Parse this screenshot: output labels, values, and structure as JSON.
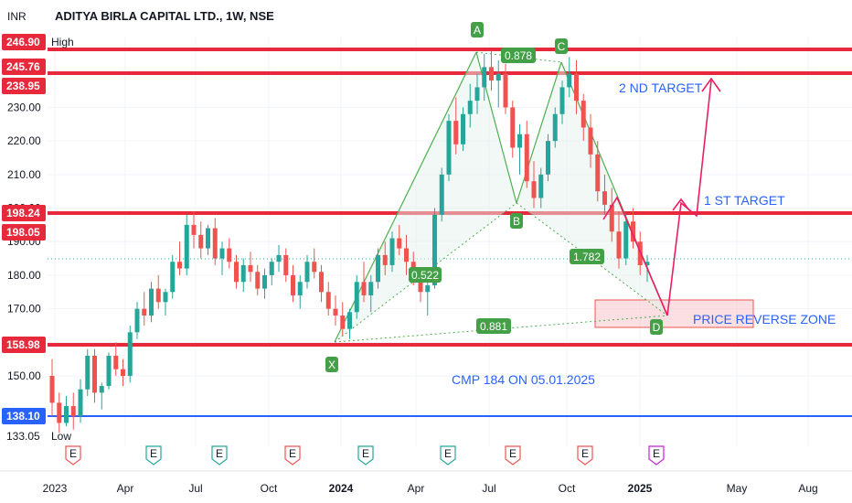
{
  "chart_data": {
    "type": "candlestick",
    "title": "ADITYA BIRLA CAPITAL LTD., 1W, NSE",
    "currency": "INR",
    "y_ticks": [
      150,
      160,
      170,
      180,
      190,
      200,
      210,
      220,
      230
    ],
    "x_ticks": [
      "2023",
      "Apr",
      "Jul",
      "Oct",
      "2024",
      "Apr",
      "Jul",
      "Oct",
      "2025",
      "May",
      "Aug"
    ],
    "ylim": [
      130,
      250
    ],
    "horizontal_levels": [
      {
        "label": "246.90",
        "value": 246.9,
        "color": "#e8283b",
        "tag": "High"
      },
      {
        "label": "245.76",
        "value": 245.76,
        "color": "#e8283b"
      },
      {
        "label": "238.95",
        "value": 238.95,
        "color": "#e8283b"
      },
      {
        "label": "198.24",
        "value": 198.24,
        "color": "#e8283b"
      },
      {
        "label": "198.05",
        "value": 198.05,
        "color": "#e8283b"
      },
      {
        "label": "158.98",
        "value": 158.98,
        "color": "#e8283b"
      },
      {
        "label": "138.10",
        "value": 138.1,
        "color": "#2962ff"
      },
      {
        "label": "133.05",
        "value": 133.05,
        "color": "#131722",
        "tag": "Low"
      }
    ],
    "pattern_points": [
      {
        "name": "X",
        "date": "2023-12-25",
        "price": 160.5
      },
      {
        "name": "A",
        "date": "2024-06-10",
        "price": 246.9
      },
      {
        "name": "B",
        "date": "2024-08-05",
        "price": 199.5
      },
      {
        "name": "C",
        "date": "2024-09-23",
        "price": 245.0
      },
      {
        "name": "D",
        "date": "2025-01-06",
        "price": 168.0
      }
    ],
    "ratios": [
      "0.878",
      "0.522",
      "1.782",
      "0.881"
    ],
    "annotations": [
      "2 ND TARGET",
      "1 ST TARGET",
      "PRICE REVERSE ZONE",
      "CMP 184 ON 05.01.2025"
    ],
    "colors": {
      "up": "#26a69a",
      "down": "#ef5350",
      "level": "#e8283b",
      "blue": "#2962ff",
      "pattern": "#4caf50",
      "arrow": "#e91e63"
    },
    "candles": [
      [
        150,
        155,
        138,
        142
      ],
      [
        142,
        145,
        133,
        136
      ],
      [
        136,
        144,
        135,
        141
      ],
      [
        141,
        145,
        134,
        138
      ],
      [
        138,
        149,
        136,
        146
      ],
      [
        146,
        158,
        144,
        156
      ],
      [
        156,
        158,
        142,
        145
      ],
      [
        145,
        148,
        140,
        147
      ],
      [
        147,
        157,
        146,
        156
      ],
      [
        156,
        160,
        150,
        152
      ],
      [
        152,
        155,
        147,
        150
      ],
      [
        150,
        165,
        148,
        163
      ],
      [
        163,
        172,
        161,
        170
      ],
      [
        170,
        175,
        165,
        168
      ],
      [
        168,
        178,
        166,
        176
      ],
      [
        176,
        180,
        170,
        172
      ],
      [
        172,
        176,
        168,
        175
      ],
      [
        175,
        186,
        173,
        184
      ],
      [
        184,
        190,
        180,
        182
      ],
      [
        182,
        198,
        180,
        195
      ],
      [
        195,
        199,
        188,
        192
      ],
      [
        192,
        196,
        185,
        188
      ],
      [
        188,
        195,
        186,
        194
      ],
      [
        194,
        197,
        183,
        185
      ],
      [
        185,
        190,
        180,
        188
      ],
      [
        188,
        191,
        182,
        184
      ],
      [
        184,
        186,
        176,
        178
      ],
      [
        178,
        185,
        175,
        183
      ],
      [
        183,
        187,
        178,
        181
      ],
      [
        181,
        183,
        174,
        176
      ],
      [
        176,
        182,
        173,
        180
      ],
      [
        180,
        185,
        177,
        184
      ],
      [
        184,
        189,
        181,
        186
      ],
      [
        186,
        188,
        178,
        180
      ],
      [
        180,
        183,
        172,
        174
      ],
      [
        174,
        180,
        170,
        178
      ],
      [
        178,
        186,
        176,
        184
      ],
      [
        184,
        188,
        179,
        181
      ],
      [
        181,
        183,
        172,
        175
      ],
      [
        175,
        178,
        168,
        170
      ],
      [
        170,
        174,
        165,
        168
      ],
      [
        168,
        172,
        162,
        164
      ],
      [
        164,
        170,
        161,
        169
      ],
      [
        169,
        180,
        167,
        178
      ],
      [
        178,
        184,
        172,
        174
      ],
      [
        174,
        180,
        169,
        178
      ],
      [
        178,
        188,
        176,
        186
      ],
      [
        186,
        190,
        180,
        183
      ],
      [
        183,
        193,
        181,
        191
      ],
      [
        191,
        195,
        186,
        188
      ],
      [
        188,
        192,
        180,
        184
      ],
      [
        184,
        187,
        177,
        180
      ],
      [
        180,
        182,
        172,
        175
      ],
      [
        175,
        179,
        168,
        177
      ],
      [
        177,
        200,
        176,
        198
      ],
      [
        198,
        212,
        196,
        210
      ],
      [
        210,
        228,
        208,
        226
      ],
      [
        226,
        233,
        216,
        219
      ],
      [
        219,
        230,
        217,
        228
      ],
      [
        228,
        237,
        224,
        232
      ],
      [
        232,
        240,
        228,
        236
      ],
      [
        236,
        246,
        232,
        242
      ],
      [
        242,
        246.9,
        235,
        238
      ],
      [
        238,
        244,
        230,
        240
      ],
      [
        240,
        243,
        228,
        230
      ],
      [
        230,
        232,
        215,
        218
      ],
      [
        218,
        225,
        210,
        222
      ],
      [
        222,
        226,
        206,
        208
      ],
      [
        208,
        214,
        200,
        203
      ],
      [
        203,
        212,
        200,
        210
      ],
      [
        210,
        222,
        208,
        220
      ],
      [
        220,
        230,
        218,
        228
      ],
      [
        228,
        238,
        225,
        236
      ],
      [
        236,
        245,
        233,
        240
      ],
      [
        240,
        244,
        228,
        232
      ],
      [
        232,
        234,
        220,
        224
      ],
      [
        224,
        228,
        212,
        216
      ],
      [
        216,
        220,
        202,
        205
      ],
      [
        205,
        210,
        198,
        201
      ],
      [
        201,
        206,
        190,
        193
      ],
      [
        193,
        199,
        182,
        185
      ],
      [
        185,
        198,
        183,
        196
      ],
      [
        196,
        200,
        188,
        190
      ],
      [
        190,
        193,
        180,
        183
      ],
      [
        183,
        186,
        178,
        184
      ]
    ]
  }
}
